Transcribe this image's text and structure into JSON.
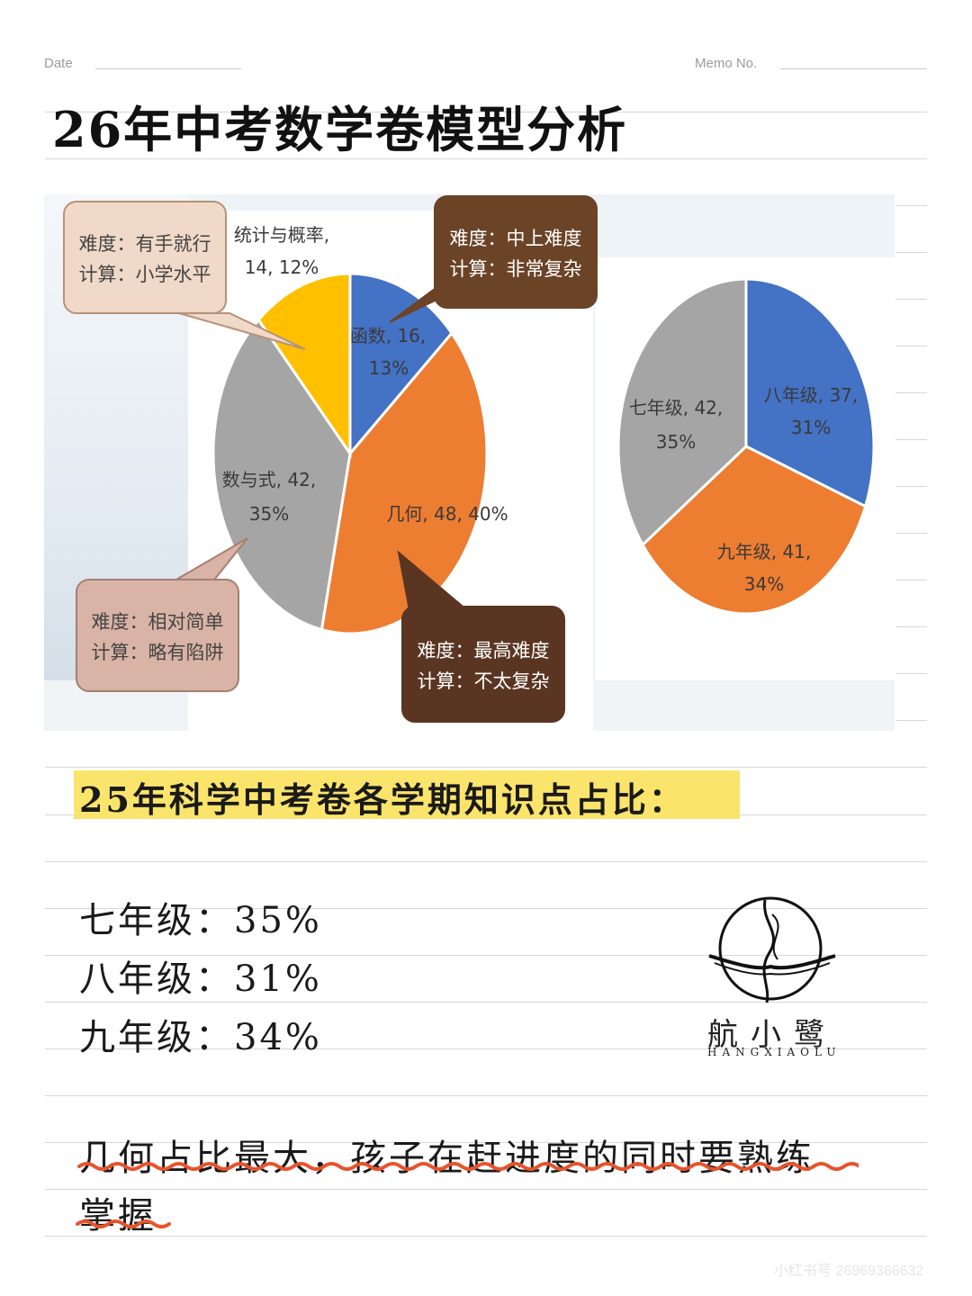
{
  "header": {
    "date_label": "Date",
    "memo_label": "Memo No."
  },
  "title": "26年中考数学卷模型分析",
  "chart_data": [
    {
      "type": "pie",
      "slices": [
        {
          "label": "函数, 16,",
          "pct_label": "13%",
          "value": 16,
          "percent": 13,
          "color": "#4472c4"
        },
        {
          "label": "几何, 48, 40%",
          "pct_label": "",
          "value": 48,
          "percent": 40,
          "color": "#ed7d31"
        },
        {
          "label": "数与式, 42,",
          "pct_label": "35%",
          "value": 42,
          "percent": 35,
          "color": "#a5a5a5"
        },
        {
          "label": "统计与概率,",
          "pct_label": "14, 12%",
          "value": 14,
          "percent": 12,
          "color": "#ffc000"
        }
      ],
      "callouts": [
        {
          "line1": "难度：有手就行",
          "line2": "计算：小学水平"
        },
        {
          "line1": "难度：中上难度",
          "line2": "计算：非常复杂"
        },
        {
          "line1": "难度：相对简单",
          "line2": "计算：略有陷阱"
        },
        {
          "line1": "难度：最高难度",
          "line2": "计算：不太复杂"
        }
      ]
    },
    {
      "type": "pie",
      "slices": [
        {
          "label": "八年级, 37,",
          "pct_label": "31%",
          "value": 37,
          "percent": 31,
          "color": "#4472c4"
        },
        {
          "label": "九年级, 41,",
          "pct_label": "34%",
          "value": 41,
          "percent": 34,
          "color": "#ed7d31"
        },
        {
          "label": "七年级, 42,",
          "pct_label": "35%",
          "value": 42,
          "percent": 35,
          "color": "#a5a5a5"
        }
      ]
    }
  ],
  "subtitle": "25年科学中考卷各学期知识点占比：",
  "grades": [
    {
      "text": "七年级：35%"
    },
    {
      "text": "八年级：31%"
    },
    {
      "text": "九年级：34%"
    }
  ],
  "note": {
    "line1": "几何占比最大，孩子在赶进度的同时要熟练",
    "line2": "掌握"
  },
  "logo": {
    "name": "航小鹭",
    "sub": "HANGXIAOLU"
  },
  "watermark": "小红书号 26969366632",
  "colors": {
    "highlight": "#fbe46b",
    "wavy_underline": "#e8532b"
  }
}
